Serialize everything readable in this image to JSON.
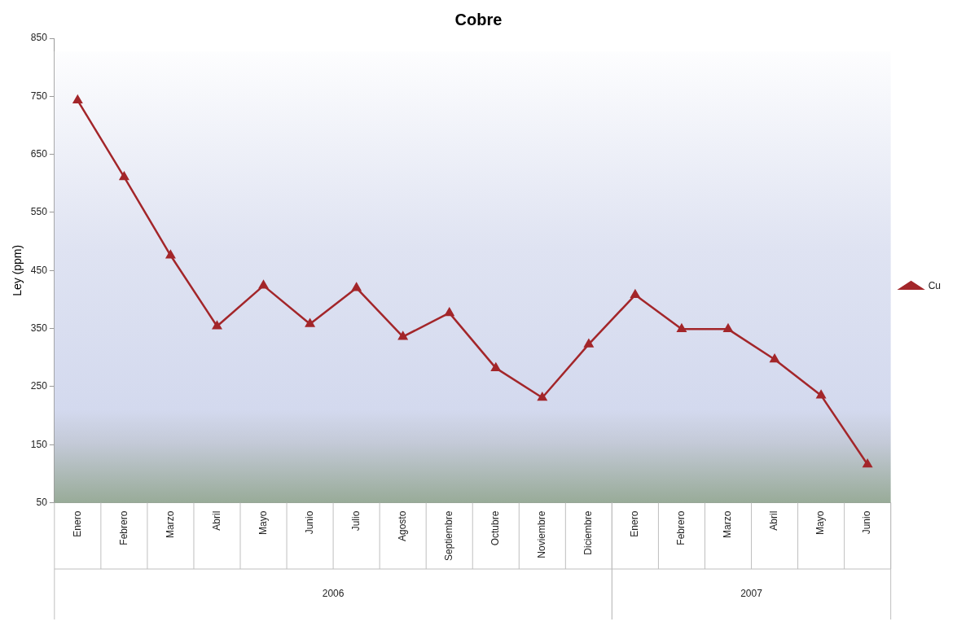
{
  "chart_data": {
    "type": "line",
    "title": "Cobre",
    "ylabel": "Ley (ppm)",
    "categories": [
      "Enero",
      "Febrero",
      "Marzo",
      "Abril",
      "Mayo",
      "Junio",
      "Julio",
      "Agosto",
      "Septiembre",
      "Octubre",
      "Noviembre",
      "Diciembre",
      "Enero",
      "Febrero",
      "Marzo",
      "Abril",
      "Mayo",
      "Junio"
    ],
    "series": [
      {
        "name": "Cu",
        "color": "#a3262a",
        "values": [
          743,
          611,
          476,
          354,
          424,
          358,
          420,
          336,
          377,
          282,
          231,
          323,
          408,
          349,
          349,
          297,
          235,
          116
        ]
      }
    ],
    "annotations": [
      "2006",
      "2007"
    ],
    "ylim": [
      50,
      850
    ],
    "yticks": [
      50,
      150,
      250,
      350,
      450,
      550,
      650,
      750,
      850
    ],
    "grid": false,
    "legend": "right",
    "marker": "triangle",
    "line_style": "solid"
  }
}
